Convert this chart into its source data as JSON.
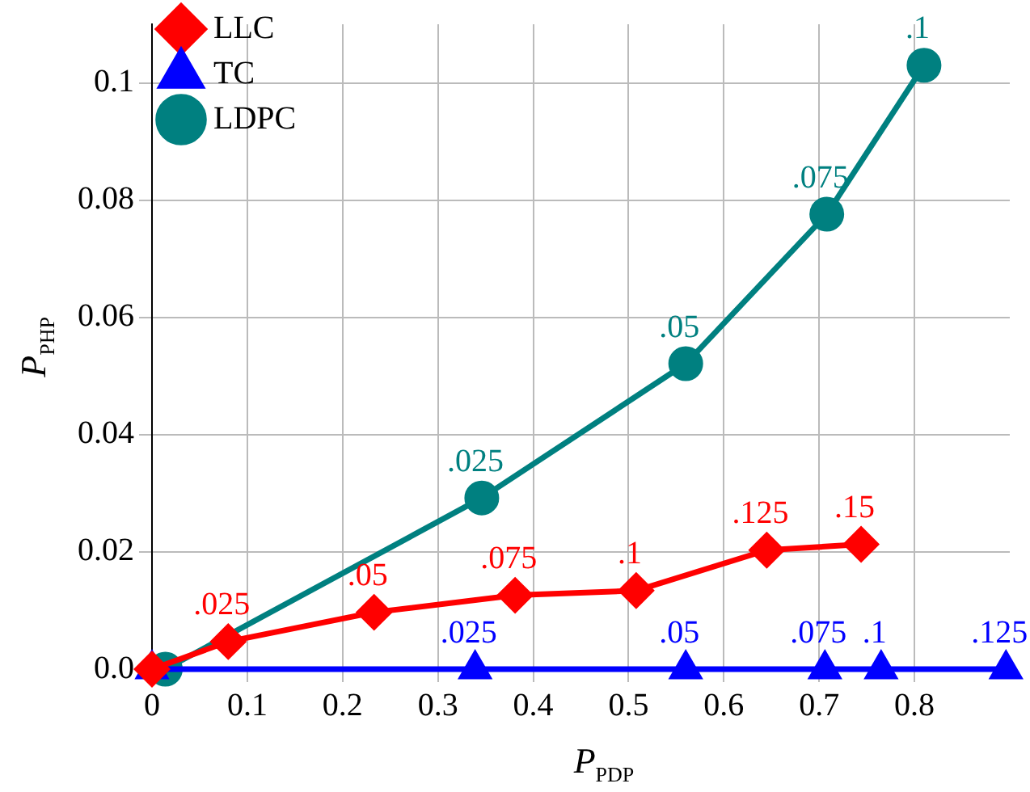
{
  "chart_data": {
    "type": "line",
    "xlabel": "P$_{PDP}$",
    "ylabel": "P$_{PHP}$",
    "xlim": [
      0,
      0.9
    ],
    "ylim": [
      0,
      0.11
    ],
    "xticks": [
      0,
      0.1,
      0.2,
      0.3,
      0.4,
      0.5,
      0.6,
      0.7,
      0.8
    ],
    "yticks": [
      {
        "value": 0,
        "label": "0.0"
      },
      0.02,
      0.04,
      0.06,
      0.08,
      0.1
    ],
    "grid": true,
    "legend": "top left",
    "line_style": "solid",
    "series": [
      {
        "name": "LLC",
        "color": "#ff0000",
        "marker": "diamond",
        "x": [
          0,
          0.08,
          0.233,
          0.381,
          0.508,
          0.645,
          0.744
        ],
        "values": [
          0,
          0.0047,
          0.0097,
          0.0126,
          0.0134,
          0.0203,
          0.0213
        ]
      },
      {
        "name": "TC",
        "color": "#0000ff",
        "marker": "triangle",
        "x": [
          0,
          0.339,
          0.56,
          0.706,
          0.765,
          0.896
        ],
        "values": [
          0,
          0,
          0,
          0,
          0,
          0
        ]
      },
      {
        "name": "LDPC",
        "color": "#008080",
        "marker": "circle",
        "x": [
          0.014,
          0.346,
          0.56,
          0.708,
          0.81
        ],
        "values": [
          0,
          0.0292,
          0.0521,
          0.0776,
          0.103
        ]
      }
    ],
    "annotations": [
      {
        "text": ".025",
        "x": 0.08,
        "y": 0.0047
      },
      {
        "text": ".05",
        "x": 0.233,
        "y": 0.0097
      },
      {
        "text": ".075",
        "x": 0.381,
        "y": 0.0126
      },
      {
        "text": ".1",
        "x": 0.508,
        "y": 0.0134
      },
      {
        "text": ".125",
        "x": 0.645,
        "y": 0.0203
      },
      {
        "text": ".15",
        "x": 0.744,
        "y": 0.0213
      },
      {
        "text": ".025",
        "x": 0.339,
        "y": 0
      },
      {
        "text": ".05",
        "x": 0.56,
        "y": 0
      },
      {
        "text": ".075",
        "x": 0.706,
        "y": 0
      },
      {
        "text": ".1",
        "x": 0.765,
        "y": 0
      },
      {
        "text": ".125",
        "x": 0.896,
        "y": 0
      },
      {
        "text": ".025",
        "x": 0.346,
        "y": 0.0292
      },
      {
        "text": ".05",
        "x": 0.56,
        "y": 0.0521
      },
      {
        "text": ".075",
        "x": 0.708,
        "y": 0.0776
      },
      {
        "text": ".1",
        "x": 0.81,
        "y": 0.103
      }
    ]
  }
}
